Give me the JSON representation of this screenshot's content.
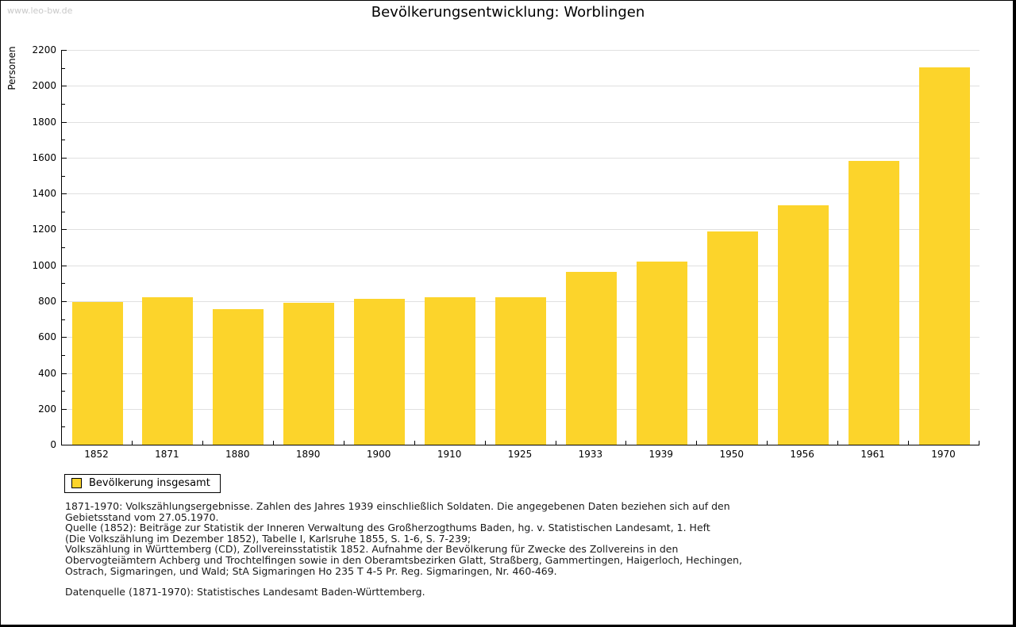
{
  "page": {
    "watermark": "www.leo-bw.de",
    "title": "Bevölkerungsentwicklung: Worblingen"
  },
  "chart_data": {
    "type": "bar",
    "title": "Bevölkerungsentwicklung: Worblingen",
    "xlabel": "",
    "ylabel": "Personen",
    "categories": [
      "1852",
      "1871",
      "1880",
      "1890",
      "1900",
      "1910",
      "1925",
      "1933",
      "1939",
      "1950",
      "1956",
      "1961",
      "1970"
    ],
    "series": [
      {
        "name": "Bevölkerung insgesamt",
        "values": [
          795,
          822,
          754,
          790,
          813,
          822,
          822,
          965,
          1020,
          1188,
          1335,
          1580,
          2105
        ]
      }
    ],
    "ylim": [
      0,
      2200
    ],
    "ytick_major_interval": 200,
    "ytick_minor_interval": 100,
    "grid": "horizontal major gridlines",
    "legend_position": "below-left",
    "bar_color": "#FCD42B"
  },
  "legend": {
    "items": [
      {
        "label": "Bevölkerung insgesamt",
        "color": "#FCD42B"
      }
    ]
  },
  "footnotes": {
    "lines": [
      "1871-1970: Volkszählungsergebnisse. Zahlen des Jahres 1939 einschließlich Soldaten. Die angegebenen Daten beziehen sich auf den",
      "Gebietsstand vom 27.05.1970.",
      "Quelle (1852): Beiträge zur Statistik der Inneren Verwaltung des Großherzogthums Baden, hg. v. Statistischen Landesamt, 1. Heft",
      "(Die Volkszählung im Dezember 1852), Tabelle I, Karlsruhe 1855, S. 1-6, S. 7-239;",
      "Volkszählung in Württemberg (CD), Zollvereinsstatistik 1852. Aufnahme der Bevölkerung für Zwecke des Zollvereins in den",
      "Obervogteiämtern Achberg und Trochtelfingen sowie in den Oberamtsbezirken Glatt, Straßberg, Gammertingen, Haigerloch, Hechingen,",
      "Ostrach, Sigmaringen, und Wald; StA Sigmaringen Ho 235 T 4-5 Pr. Reg. Sigmaringen, Nr. 460-469."
    ],
    "source_line": "Datenquelle (1871-1970): Statistisches Landesamt Baden-Württemberg."
  },
  "colors": {
    "bar": "#FCD42B",
    "grid": "#E0E0E0",
    "axis": "#000000",
    "watermark": "#C9C9C9",
    "text": "#000000",
    "footnote_text": "#1A1A1A"
  }
}
